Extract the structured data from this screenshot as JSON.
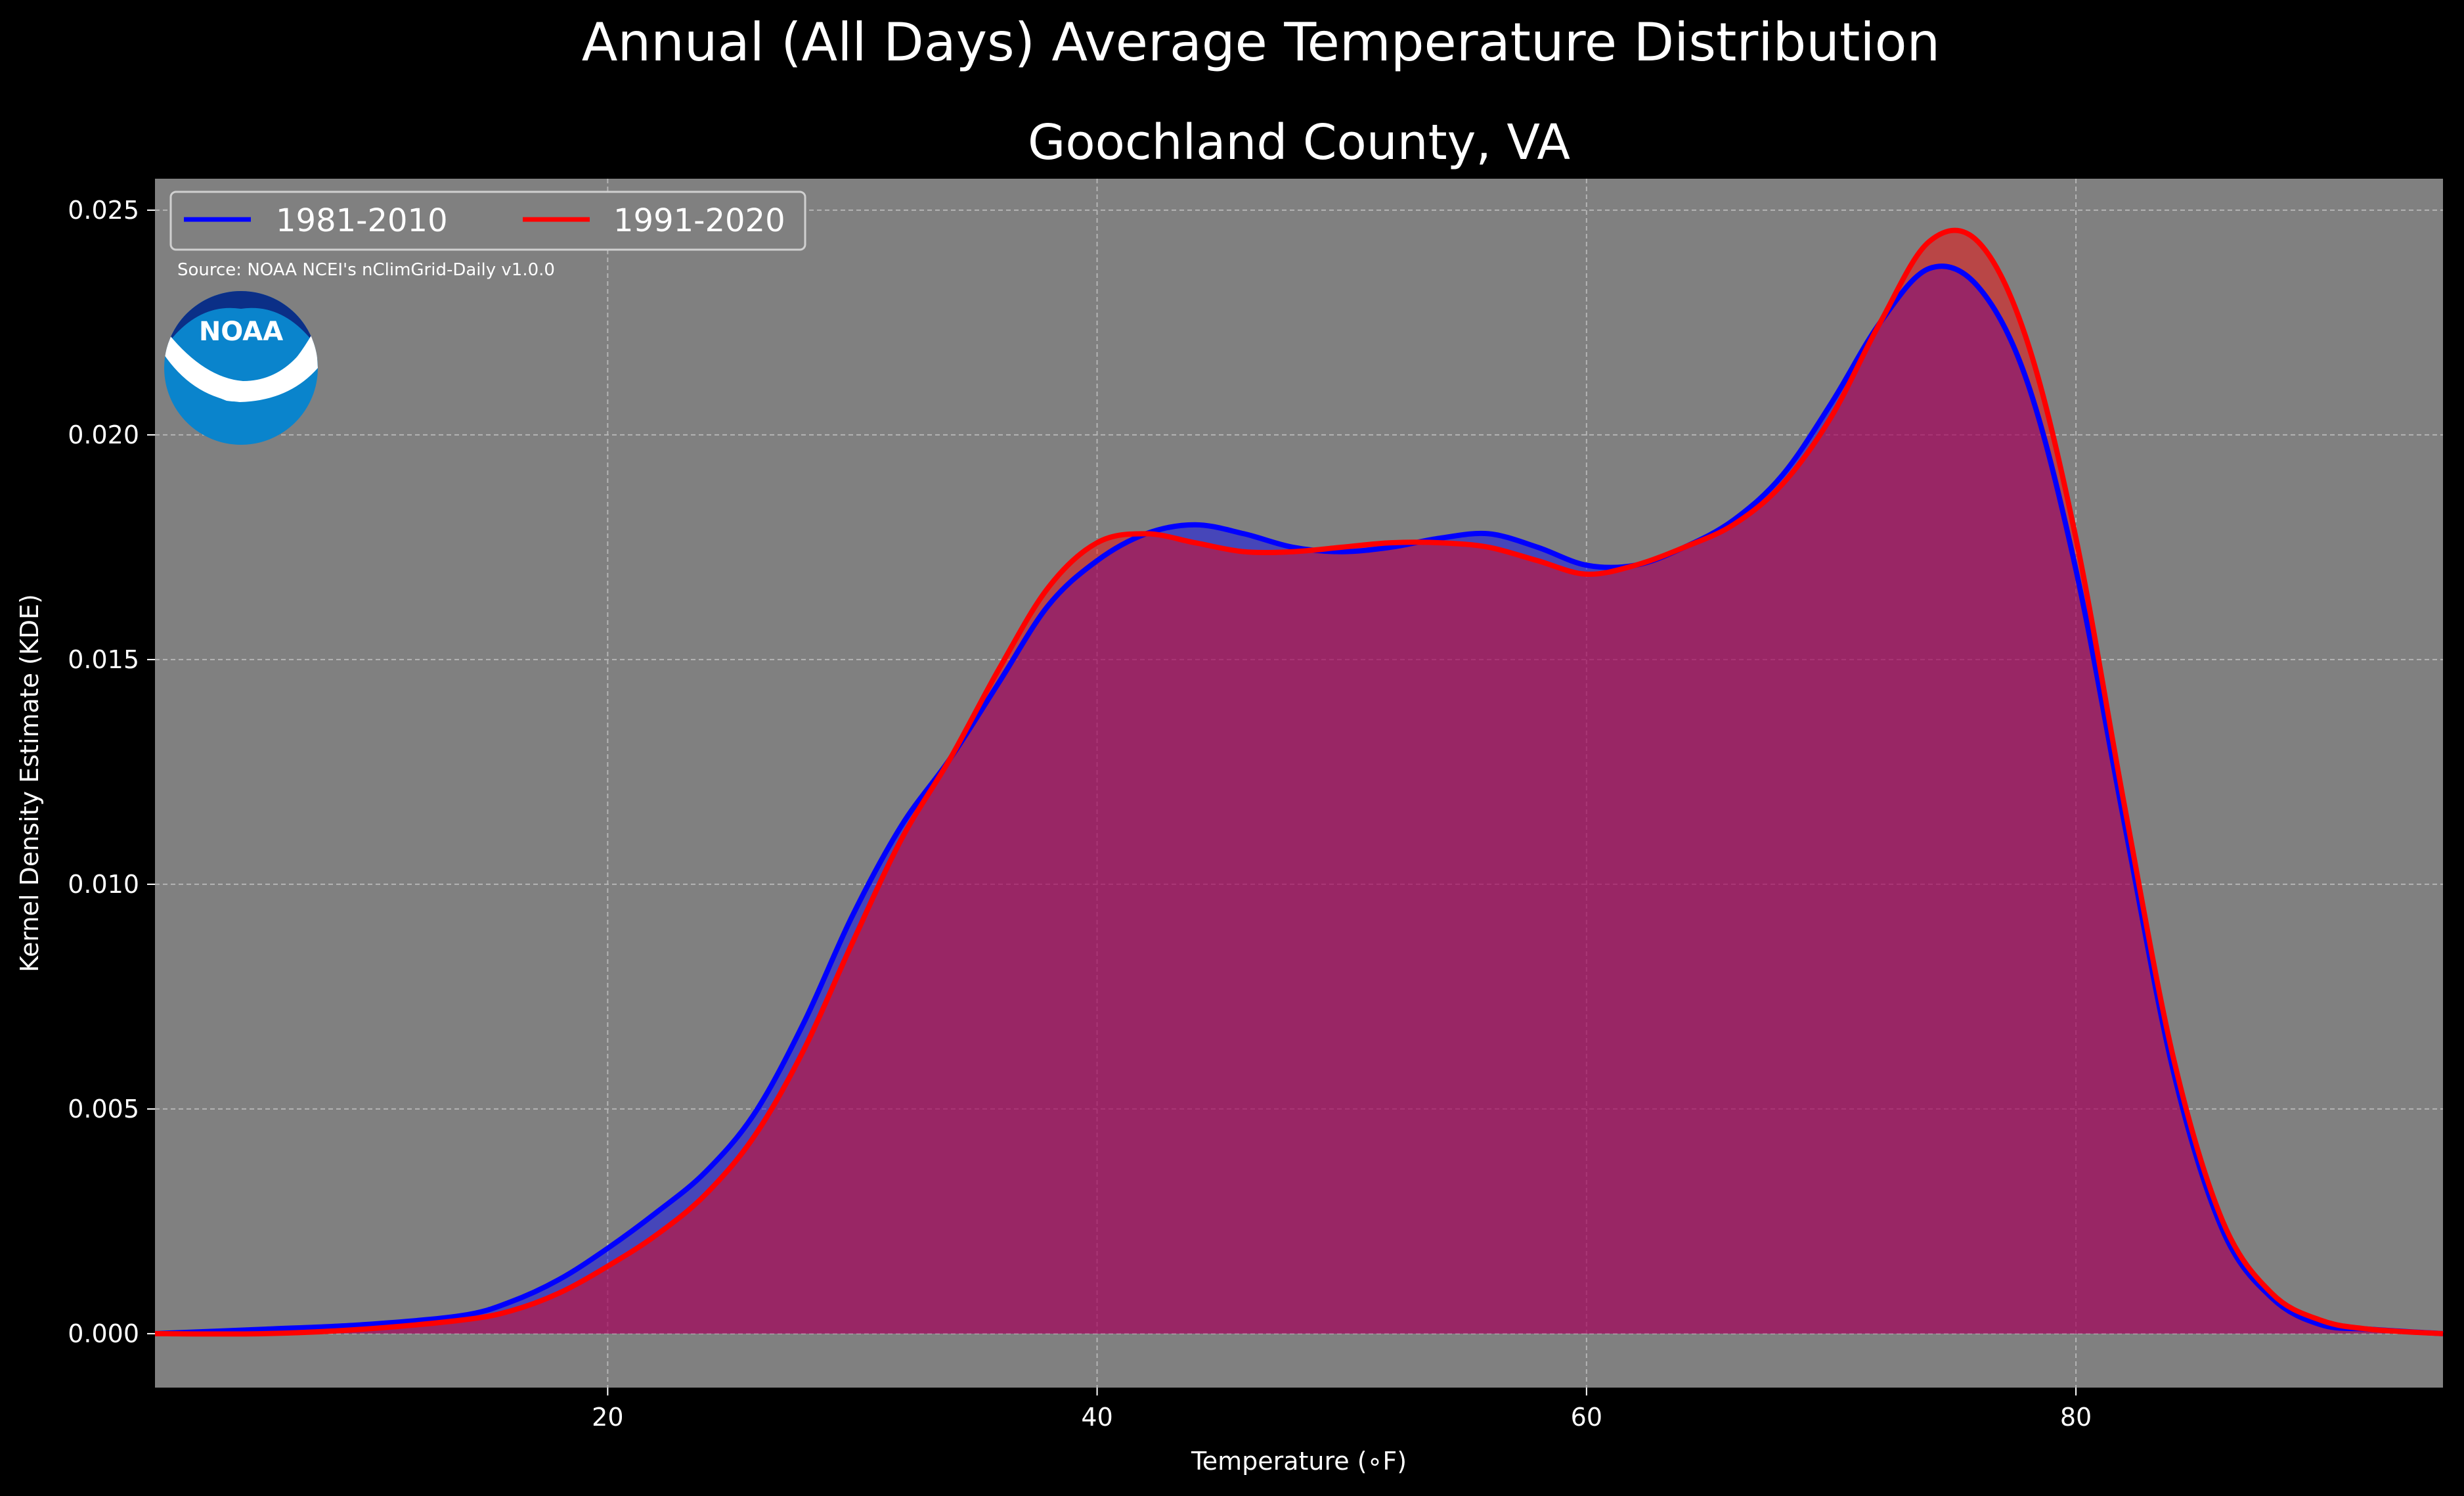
{
  "figure": {
    "title": "Annual (All Days) Average Temperature Distribution",
    "subtitle": "Goochland County, VA",
    "source": "Source: NOAA NCEI's nClimGrid-Daily v1.0.0",
    "logo_text": "NOAA",
    "background": "#000000",
    "plot_background": "#808080"
  },
  "chart_data": {
    "type": "area",
    "title": "Goochland County, VA",
    "xlabel": "Temperature (∘F)",
    "ylabel": "Kernel Density Estimate (KDE)",
    "xlim": [
      1.5,
      95
    ],
    "ylim": [
      -0.0012,
      0.0257
    ],
    "xticks": [
      20,
      40,
      60,
      80
    ],
    "xtick_labels": [
      "20",
      "40",
      "60",
      "80"
    ],
    "yticks": [
      0.0,
      0.005,
      0.01,
      0.015,
      0.02,
      0.025
    ],
    "ytick_labels": [
      "0.000",
      "0.005",
      "0.010",
      "0.015",
      "0.020",
      "0.025"
    ],
    "grid": true,
    "legend_position": "top-left",
    "series": [
      {
        "name": "1981-2010",
        "color": "#0000ff",
        "points": [
          [
            1.5,
            0.0
          ],
          [
            6,
            0.0001
          ],
          [
            10,
            0.0002
          ],
          [
            14,
            0.0004
          ],
          [
            16,
            0.0007
          ],
          [
            18,
            0.0012
          ],
          [
            20,
            0.0019
          ],
          [
            22,
            0.0027
          ],
          [
            24,
            0.0036
          ],
          [
            26,
            0.0049
          ],
          [
            28,
            0.0069
          ],
          [
            30,
            0.0093
          ],
          [
            32,
            0.0113
          ],
          [
            34,
            0.0128
          ],
          [
            36,
            0.0145
          ],
          [
            38,
            0.0162
          ],
          [
            40,
            0.0172
          ],
          [
            42,
            0.0178
          ],
          [
            44,
            0.018
          ],
          [
            46,
            0.0178
          ],
          [
            48,
            0.0175
          ],
          [
            50,
            0.0174
          ],
          [
            52,
            0.0175
          ],
          [
            54,
            0.0177
          ],
          [
            56,
            0.0178
          ],
          [
            58,
            0.0175
          ],
          [
            60,
            0.0171
          ],
          [
            62,
            0.0171
          ],
          [
            64,
            0.0175
          ],
          [
            66,
            0.0181
          ],
          [
            68,
            0.0191
          ],
          [
            70,
            0.0207
          ],
          [
            72,
            0.0225
          ],
          [
            74,
            0.0237
          ],
          [
            76,
            0.0233
          ],
          [
            78,
            0.0212
          ],
          [
            80,
            0.017
          ],
          [
            82,
            0.0113
          ],
          [
            84,
            0.0058
          ],
          [
            86,
            0.0023
          ],
          [
            88,
            0.0008
          ],
          [
            90,
            0.0002
          ],
          [
            92,
            0.0001
          ],
          [
            95,
            0.0
          ]
        ]
      },
      {
        "name": "1991-2020",
        "color": "#ff0000",
        "points": [
          [
            1.5,
            0.0
          ],
          [
            6,
            0.0
          ],
          [
            10,
            0.0001
          ],
          [
            14,
            0.0003
          ],
          [
            16,
            0.0005
          ],
          [
            18,
            0.0009
          ],
          [
            20,
            0.0015
          ],
          [
            22,
            0.0022
          ],
          [
            24,
            0.0031
          ],
          [
            26,
            0.0044
          ],
          [
            28,
            0.0063
          ],
          [
            30,
            0.0087
          ],
          [
            32,
            0.011
          ],
          [
            34,
            0.0128
          ],
          [
            36,
            0.0148
          ],
          [
            38,
            0.0166
          ],
          [
            40,
            0.0176
          ],
          [
            42,
            0.0178
          ],
          [
            44,
            0.0176
          ],
          [
            46,
            0.0174
          ],
          [
            48,
            0.0174
          ],
          [
            50,
            0.0175
          ],
          [
            52,
            0.0176
          ],
          [
            54,
            0.0176
          ],
          [
            56,
            0.0175
          ],
          [
            58,
            0.0172
          ],
          [
            60,
            0.0169
          ],
          [
            62,
            0.0171
          ],
          [
            64,
            0.0175
          ],
          [
            66,
            0.018
          ],
          [
            68,
            0.0189
          ],
          [
            70,
            0.0204
          ],
          [
            72,
            0.0225
          ],
          [
            74,
            0.0243
          ],
          [
            76,
            0.0243
          ],
          [
            78,
            0.0221
          ],
          [
            80,
            0.0177
          ],
          [
            82,
            0.0117
          ],
          [
            84,
            0.0061
          ],
          [
            86,
            0.0025
          ],
          [
            88,
            0.0009
          ],
          [
            90,
            0.0003
          ],
          [
            92,
            0.0001
          ],
          [
            95,
            0.0
          ]
        ]
      }
    ]
  }
}
